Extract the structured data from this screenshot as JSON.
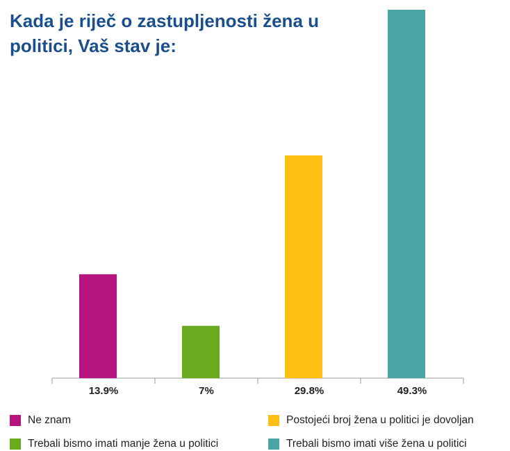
{
  "chart_data": {
    "type": "bar",
    "title": "Kada je riječ o zastupljenosti žena u politici, Vaš stav je:",
    "categories": [
      "Ne znam",
      "Trebali bismo imati manje žena u politici",
      "Postojeći broj žena u politici je dovoljan",
      "Trebali bismo imati više žena u politici"
    ],
    "values": [
      13.9,
      7,
      29.8,
      49.3
    ],
    "value_labels": [
      "13.9%",
      "7%",
      "29.8%",
      "49.3%"
    ],
    "colors": [
      "#b5137e",
      "#6aaa1e",
      "#fdbf12",
      "#4aa5a4"
    ],
    "ylim": [
      0,
      49.3
    ]
  }
}
